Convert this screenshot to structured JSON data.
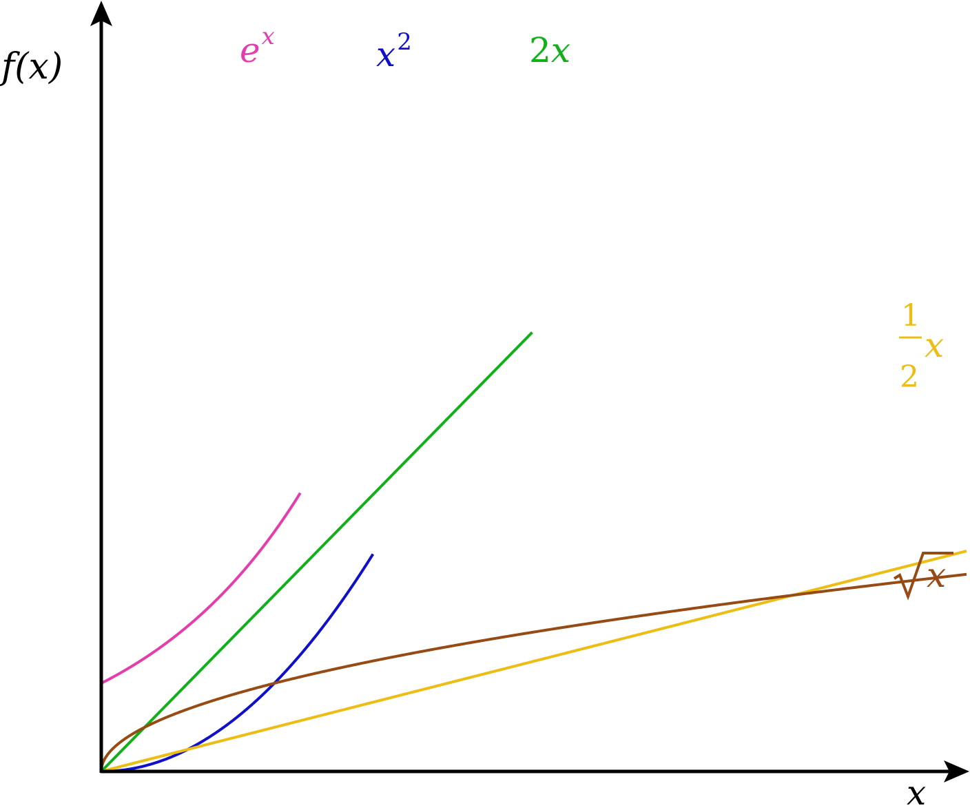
{
  "chart_data": {
    "type": "line",
    "title": "",
    "xlabel": "x",
    "ylabel": "f(x)",
    "xlim": [
      0,
      5
    ],
    "ylim": [
      0,
      8.75
    ],
    "grid": false,
    "legend": "none",
    "series": [
      {
        "name": "e^x",
        "label_base": "e",
        "label_sup": "x",
        "fn": "exp",
        "domain": [
          0,
          1.15
        ],
        "color": "#e43ead"
      },
      {
        "name": "x^2",
        "label_base": "x",
        "label_sup": "2",
        "fn": "square",
        "domain": [
          0,
          1.57
        ],
        "color": "#1010c8"
      },
      {
        "name": "2x",
        "label_num": "2",
        "label_var": "x",
        "fn": "double",
        "domain": [
          0,
          2.49
        ],
        "color": "#11b01b"
      },
      {
        "name": "1/2 x",
        "label_numer": "1",
        "label_denom": "2",
        "label_var": "x",
        "fn": "half",
        "domain": [
          0,
          5
        ],
        "color": "#ecbd14"
      },
      {
        "name": "sqrt(x)",
        "label_var": "x",
        "fn": "sqrt",
        "domain": [
          0,
          5
        ],
        "color": "#964b14"
      }
    ],
    "axis_color": "#000000"
  }
}
